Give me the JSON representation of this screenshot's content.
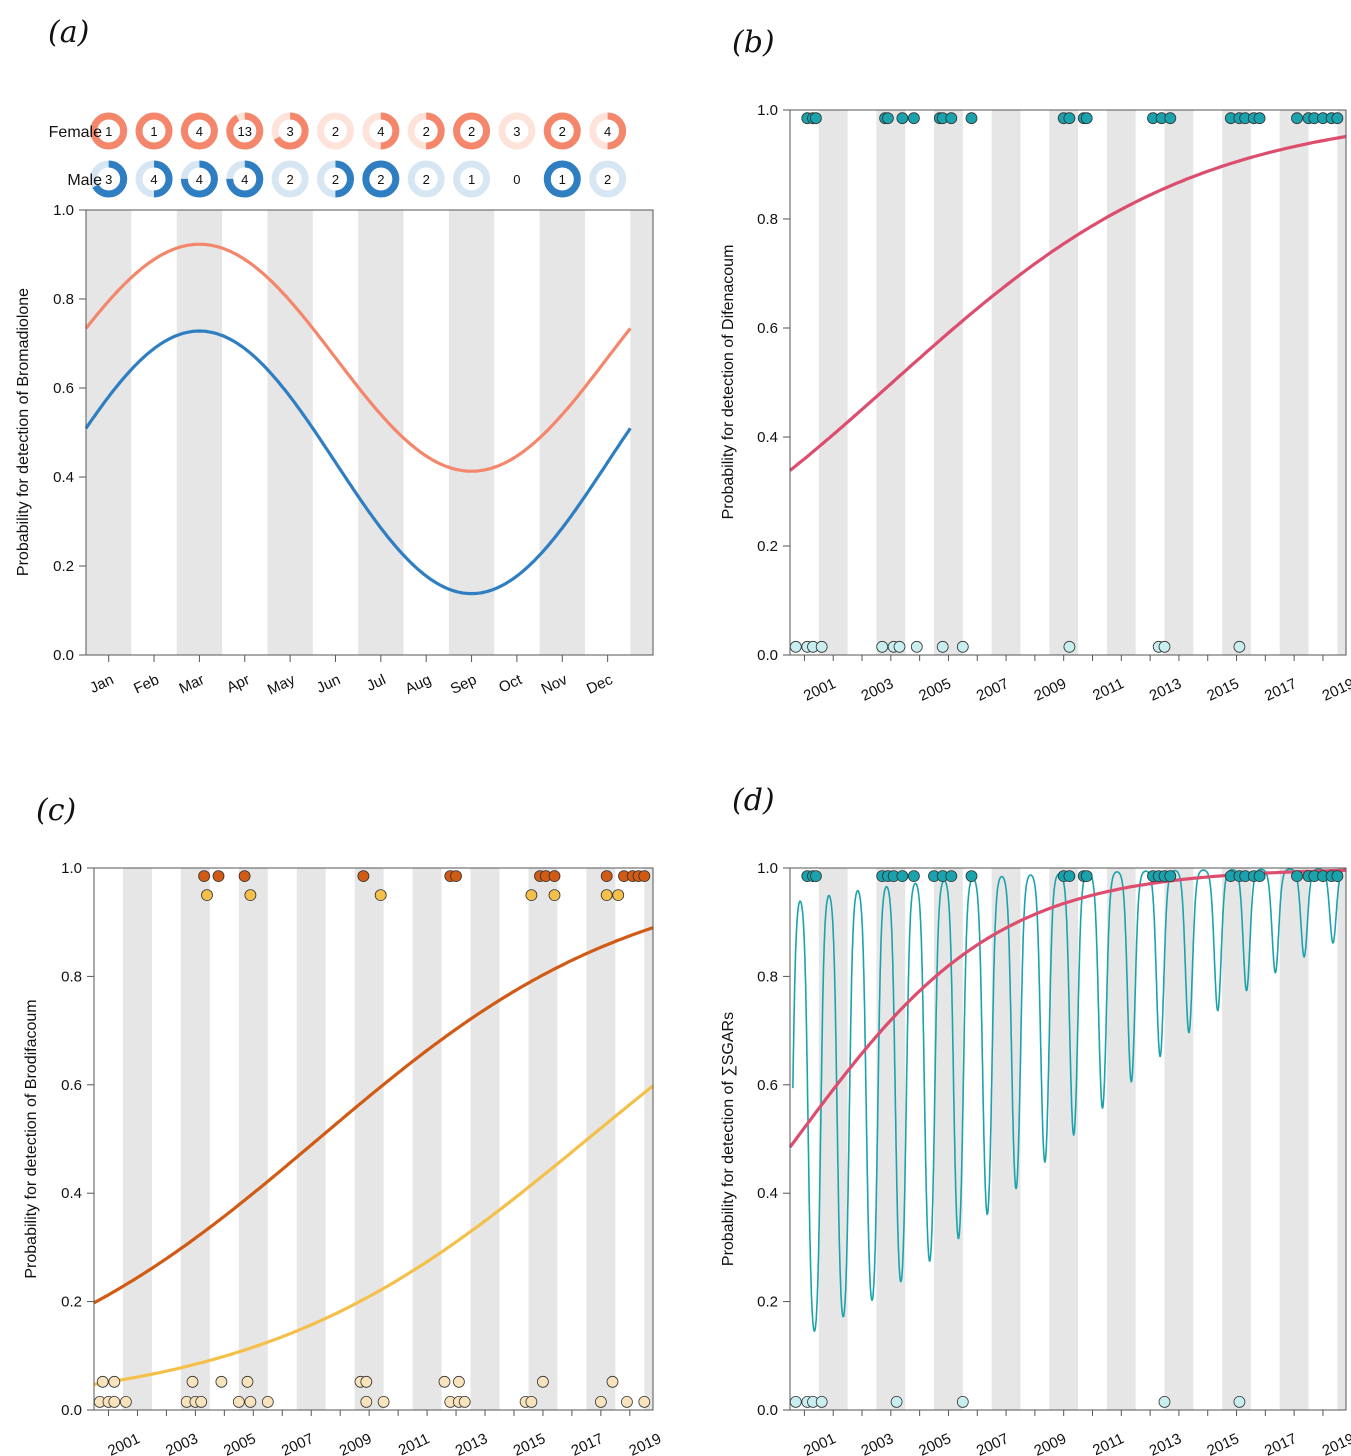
{
  "colors": {
    "band": "#e6e6e6",
    "female": "#f4876b",
    "female_light": "#fde3da",
    "male": "#2e7ec1",
    "male_light": "#d7e6f3",
    "pink_curve": "#dc4d6e",
    "teal_point": "#1aa3ad",
    "teal_light": "#c8eef0",
    "dark_orange": "#d15b14",
    "light_orange": "#f5c04a",
    "cream": "#f8e3bd"
  },
  "chart_data": [
    {
      "id": "a",
      "panel_label": "(a)",
      "type": "line",
      "ylabel": "Probability for detection of Bromadiolone",
      "ylim": [
        0,
        1
      ],
      "yticks": [
        "0.0",
        "0.2",
        "0.4",
        "0.6",
        "0.8",
        "1.0"
      ],
      "xlim": [
        0.5,
        13
      ],
      "xtick_labels": [
        "Jan",
        "Feb",
        "Mar",
        "Apr",
        "May",
        "Jun",
        "Jul",
        "Aug",
        "Sep",
        "Oct",
        "Nov",
        "Dec"
      ],
      "grid_bands": "alternating grey month bands",
      "series": [
        {
          "name": "Female",
          "color": "female",
          "mean": 0.668,
          "amp": 0.255,
          "phase_month": 3.0,
          "x_start": 0.5,
          "x_end": 12.5
        },
        {
          "name": "Male",
          "color": "male",
          "mean": 0.433,
          "amp": 0.295,
          "phase_month": 3.0,
          "x_start": 0.5,
          "x_end": 12.5
        }
      ],
      "donuts": {
        "Female": [
          {
            "n": 1,
            "frac": 1.0
          },
          {
            "n": 1,
            "frac": 1.0
          },
          {
            "n": 4,
            "frac": 1.0
          },
          {
            "n": 13,
            "frac": 0.92
          },
          {
            "n": 3,
            "frac": 0.67
          },
          {
            "n": 2,
            "frac": 0.0
          },
          {
            "n": 4,
            "frac": 0.5
          },
          {
            "n": 2,
            "frac": 0.5
          },
          {
            "n": 2,
            "frac": 1.0
          },
          {
            "n": 3,
            "frac": 0.0
          },
          {
            "n": 2,
            "frac": 1.0
          },
          {
            "n": 4,
            "frac": 0.5
          }
        ],
        "Male": [
          {
            "n": 3,
            "frac": 0.67
          },
          {
            "n": 4,
            "frac": 0.5
          },
          {
            "n": 4,
            "frac": 0.75
          },
          {
            "n": 4,
            "frac": 0.75
          },
          {
            "n": 2,
            "frac": 0.0
          },
          {
            "n": 2,
            "frac": 0.5
          },
          {
            "n": 2,
            "frac": 1.0
          },
          {
            "n": 2,
            "frac": 0.0
          },
          {
            "n": 1,
            "frac": 0.0
          },
          {
            "n": 0,
            "frac": null
          },
          {
            "n": 1,
            "frac": 1.0
          },
          {
            "n": 2,
            "frac": 0.0
          }
        ]
      }
    },
    {
      "id": "b",
      "panel_label": "(b)",
      "type": "scatter",
      "ylabel": "Probability for detection of Difenacoum",
      "ylim": [
        0,
        1
      ],
      "yticks": [
        "0.0",
        "0.2",
        "0.4",
        "0.6",
        "0.8",
        "1.0"
      ],
      "xlim": [
        2000.0,
        2019.3
      ],
      "xtick_labels": [
        "2001",
        "2003",
        "2005",
        "2007",
        "2009",
        "2011",
        "2013",
        "2015",
        "2017",
        "2019"
      ],
      "grid_bands": "alternating grey year bands",
      "curve": {
        "type": "logistic",
        "a": -0.67,
        "b": 0.1887,
        "x0": 2000,
        "x_start": 2000.0,
        "x_end": 2019.3,
        "color": "pink_curve"
      },
      "points_top": {
        "y": 0.985,
        "color": "teal_point",
        "x": [
          2000.6,
          2000.8,
          2000.9,
          2003.3,
          2003.4,
          2003.9,
          2004.3,
          2005.2,
          2005.3,
          2005.6,
          2006.3,
          2009.5,
          2009.7,
          2010.2,
          2010.3,
          2012.6,
          2012.9,
          2013.2,
          2015.3,
          2015.6,
          2015.8,
          2016.1,
          2016.3,
          2017.6,
          2018.0,
          2018.2,
          2018.5,
          2018.8,
          2019.0
        ]
      },
      "points_bottom": {
        "y": 0.015,
        "color": "teal_light",
        "x": [
          2000.2,
          2000.6,
          2000.8,
          2001.1,
          2003.2,
          2003.6,
          2003.8,
          2004.4,
          2005.3,
          2006.0,
          2009.7,
          2012.8,
          2013.0,
          2015.6
        ]
      }
    },
    {
      "id": "c",
      "panel_label": "(c)",
      "type": "scatter",
      "ylabel": "Probability for detection of Brodifacoum",
      "ylim": [
        0,
        1
      ],
      "yticks": [
        "0.0",
        "0.2",
        "0.4",
        "0.6",
        "0.8",
        "1.0"
      ],
      "xlim": [
        2000.0,
        2019.3
      ],
      "xtick_labels": [
        "2001",
        "2003",
        "2005",
        "2007",
        "2009",
        "2011",
        "2013",
        "2015",
        "2017",
        "2019"
      ],
      "grid_bands": "alternating grey year bands",
      "curves": [
        {
          "type": "logistic",
          "a": -1.4,
          "b": 0.1808,
          "x0": 2000,
          "x_start": 2000.0,
          "x_end": 2019.3,
          "color": "dark_orange"
        },
        {
          "type": "logistic",
          "a": -3.0,
          "b": 0.176,
          "x0": 2000,
          "x_start": 2000.0,
          "x_end": 2019.3,
          "color": "light_orange"
        }
      ],
      "point_rows": [
        {
          "y": 0.985,
          "color": "dark_orange",
          "x": [
            2003.8,
            2004.3,
            2005.2,
            2009.3,
            2012.3,
            2012.5,
            2015.4,
            2015.6,
            2015.9,
            2017.7,
            2018.3,
            2018.6,
            2018.8,
            2019.0
          ]
        },
        {
          "y": 0.95,
          "color": "light_orange",
          "x": [
            2003.9,
            2005.4,
            2009.9,
            2015.1,
            2015.9,
            2017.7,
            2018.1
          ]
        },
        {
          "y": 0.052,
          "color": "cream",
          "x": [
            2000.3,
            2000.7,
            2003.4,
            2004.4,
            2005.3,
            2009.2,
            2009.4,
            2012.1,
            2012.6,
            2015.5,
            2017.9
          ]
        },
        {
          "y": 0.015,
          "color": "cream",
          "x": [
            2000.2,
            2000.5,
            2000.7,
            2001.1,
            2003.2,
            2003.5,
            2003.7,
            2005.0,
            2005.4,
            2006.0,
            2009.4,
            2010.0,
            2012.3,
            2012.6,
            2012.8,
            2014.9,
            2015.1,
            2017.5,
            2018.4,
            2019.0
          ]
        }
      ]
    },
    {
      "id": "d",
      "panel_label": "(d)",
      "type": "scatter",
      "ylabel": "Probability for detection of ∑SGARs",
      "ylim": [
        0,
        1
      ],
      "yticks": [
        "0.0",
        "0.2",
        "0.4",
        "0.6",
        "0.8",
        "1.0"
      ],
      "xlim": [
        2000.0,
        2019.3
      ],
      "xtick_labels": [
        "2001",
        "2003",
        "2005",
        "2007",
        "2009",
        "2011",
        "2013",
        "2015",
        "2017",
        "2019"
      ],
      "grid_bands": "alternating grey year bands",
      "curve": {
        "type": "logistic",
        "a": -0.06,
        "b": 0.286,
        "x0": 2000,
        "x_start": 2000.0,
        "x_end": 2019.3,
        "color": "pink_curve"
      },
      "seasonal_curve": {
        "type": "logistic_seasonal",
        "a": 0.36,
        "b": 0.2,
        "amp": 2.3,
        "period": 1.0,
        "x_start": 2000.1,
        "x_end": 2019.3,
        "color": "teal_point"
      },
      "points_top": {
        "y": 0.985,
        "color": "teal_point",
        "x": [
          2000.6,
          2000.8,
          2000.9,
          2003.2,
          2003.4,
          2003.6,
          2003.9,
          2004.3,
          2005.0,
          2005.3,
          2005.6,
          2006.3,
          2009.5,
          2009.7,
          2010.2,
          2010.3,
          2012.6,
          2012.8,
          2013.0,
          2013.2,
          2015.3,
          2015.6,
          2015.8,
          2016.1,
          2016.3,
          2017.6,
          2018.0,
          2018.2,
          2018.5,
          2018.8,
          2019.0
        ]
      },
      "points_bottom": {
        "y": 0.015,
        "color": "teal_light",
        "x": [
          2000.2,
          2000.6,
          2000.8,
          2001.1,
          2003.7,
          2006.0,
          2013.0,
          2015.6
        ]
      }
    }
  ]
}
